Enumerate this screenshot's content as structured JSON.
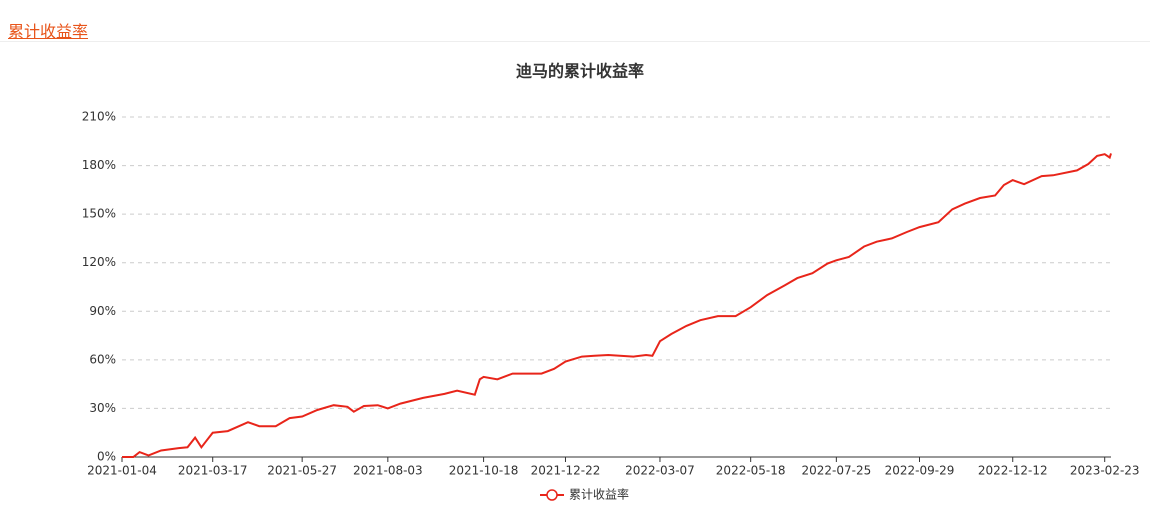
{
  "header": {
    "tab": "累计收益率"
  },
  "chart_data": {
    "type": "line",
    "title": "迪马的累计收益率",
    "x": [
      "2021-01-04",
      "2021-01-13",
      "2021-01-18",
      "2021-01-25",
      "2021-02-04",
      "2021-02-18",
      "2021-02-25",
      "2021-03-03",
      "2021-03-08",
      "2021-03-12",
      "2021-03-17",
      "2021-03-29",
      "2021-04-14",
      "2021-04-23",
      "2021-05-06",
      "2021-05-17",
      "2021-05-27",
      "2021-06-08",
      "2021-06-21",
      "2021-07-02",
      "2021-07-07",
      "2021-07-15",
      "2021-07-26",
      "2021-08-03",
      "2021-08-13",
      "2021-08-31",
      "2021-09-17",
      "2021-09-27",
      "2021-10-11",
      "2021-10-15",
      "2021-10-18",
      "2021-10-29",
      "2021-11-10",
      "2021-11-22",
      "2021-12-03",
      "2021-12-13",
      "2021-12-22",
      "2022-01-04",
      "2022-01-14",
      "2022-01-25",
      "2022-02-14",
      "2022-02-24",
      "2022-03-01",
      "2022-03-07",
      "2022-03-16",
      "2022-03-28",
      "2022-04-08",
      "2022-04-22",
      "2022-05-06",
      "2022-05-18",
      "2022-05-31",
      "2022-06-14",
      "2022-06-24",
      "2022-07-06",
      "2022-07-18",
      "2022-07-25",
      "2022-08-04",
      "2022-08-16",
      "2022-08-26",
      "2022-09-07",
      "2022-09-19",
      "2022-09-29",
      "2022-10-14",
      "2022-10-25",
      "2022-11-04",
      "2022-11-16",
      "2022-11-28",
      "2022-12-05",
      "2022-12-12",
      "2022-12-21",
      "2023-01-04",
      "2023-01-13",
      "2023-02-01",
      "2023-02-10",
      "2023-02-17",
      "2023-02-23",
      "2023-02-27",
      "2023-02-28"
    ],
    "series": [
      {
        "name": "累计收益率",
        "color": "#e8251a",
        "values": [
          0,
          0,
          3,
          1,
          4,
          5.5,
          6,
          12,
          6,
          10,
          15,
          16,
          21.5,
          19,
          19,
          24,
          25,
          29,
          32,
          31,
          28,
          31.5,
          32,
          30,
          33,
          36.5,
          39,
          41,
          38.5,
          48,
          49.5,
          48,
          51.5,
          51.5,
          51.5,
          54.5,
          59,
          62,
          62.5,
          63,
          62,
          63,
          62.5,
          71.5,
          76,
          81,
          84.5,
          87,
          87,
          92.5,
          100,
          106,
          110.5,
          113.5,
          119.5,
          121.5,
          123.5,
          130,
          133,
          135,
          139,
          142,
          145,
          153,
          156.5,
          160,
          161.5,
          168,
          171,
          168.5,
          173.5,
          174,
          177,
          181,
          186,
          187,
          185,
          187.5
        ]
      }
    ],
    "xlim": [
      "2021-01-04",
      "2023-02-28"
    ],
    "xticks": [
      "2021-01-04",
      "2021-03-17",
      "2021-05-27",
      "2021-08-03",
      "2021-10-18",
      "2021-12-22",
      "2022-03-07",
      "2022-05-18",
      "2022-07-25",
      "2022-09-29",
      "2022-12-12",
      "2023-02-23"
    ],
    "ylim": [
      0,
      210
    ],
    "yticks": [
      {
        "value": 0,
        "label": "0%"
      },
      {
        "value": 30,
        "label": "30%"
      },
      {
        "value": 60,
        "label": "60%"
      },
      {
        "value": 90,
        "label": "90%"
      },
      {
        "value": 120,
        "label": "120%"
      },
      {
        "value": 150,
        "label": "150%"
      },
      {
        "value": 180,
        "label": "180%"
      },
      {
        "value": 210,
        "label": "210%"
      }
    ],
    "grid": true,
    "legend": "bottom"
  }
}
